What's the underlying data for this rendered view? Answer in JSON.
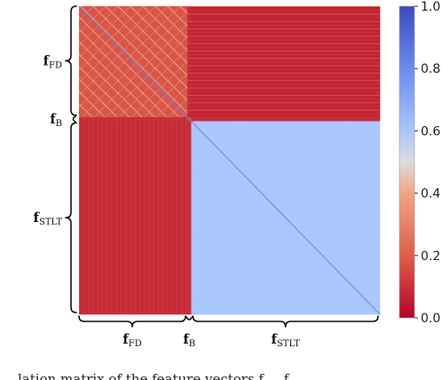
{
  "chart_data": {
    "type": "heatmap",
    "title": "",
    "value_range": [
      0.0,
      1.0
    ],
    "colormap": "coolwarm_r",
    "colorbar_ticks": [
      "0.0",
      "0.2",
      "0.4",
      "0.6",
      "0.8",
      "1.0"
    ],
    "blocks": [
      {
        "id": "FD",
        "label": "f",
        "subscript": "FD",
        "fraction": 0.36
      },
      {
        "id": "B",
        "label": "f",
        "subscript": "B",
        "fraction": 0.013
      },
      {
        "id": "STLT",
        "label": "f",
        "subscript": "STLT",
        "fraction": 0.627
      }
    ],
    "block_correlation": {
      "FD-FD": 0.18,
      "FD-B": 0.08,
      "FD-STLT": 0.07,
      "B-B": 0.15,
      "B-STLT": 0.09,
      "STLT-STLT": 0.6
    },
    "colors": {
      "low": "#b40426",
      "mid": "#dddddd",
      "high": "#3b4cc0"
    }
  },
  "caption": {
    "partial_text": "lation matrix of the feature vectors f",
    "suffix": "f"
  }
}
